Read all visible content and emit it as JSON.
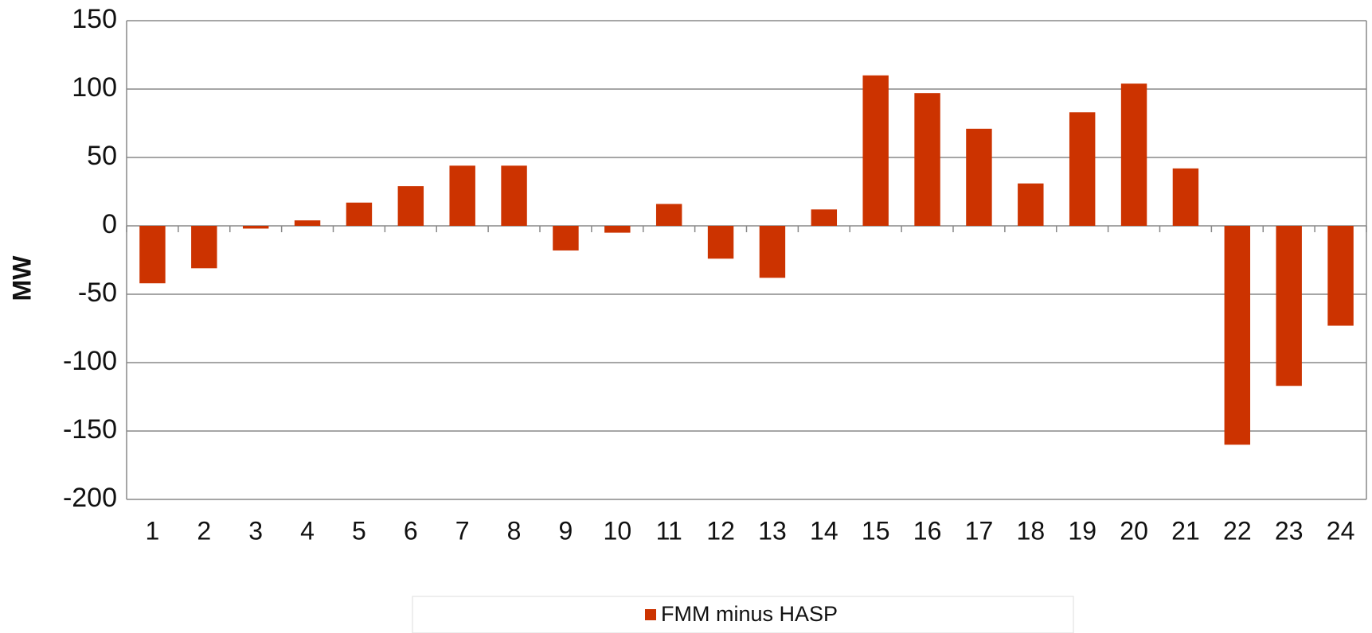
{
  "chart_data": {
    "type": "bar",
    "y_label": "MW",
    "categories": [
      "1",
      "2",
      "3",
      "4",
      "5",
      "6",
      "7",
      "8",
      "9",
      "10",
      "11",
      "12",
      "13",
      "14",
      "15",
      "16",
      "17",
      "18",
      "19",
      "20",
      "21",
      "22",
      "23",
      "24"
    ],
    "series": [
      {
        "name": "FMM minus HASP",
        "color": "#cc3300",
        "values": [
          -42,
          -31,
          -2,
          4,
          17,
          29,
          44,
          44,
          -18,
          -5,
          16,
          -24,
          -38,
          12,
          110,
          97,
          71,
          31,
          83,
          104,
          42,
          -160,
          -117,
          -73
        ]
      }
    ],
    "ylim": [
      -200,
      150
    ],
    "yticks": [
      -200,
      -150,
      -100,
      -50,
      0,
      50,
      100,
      150
    ],
    "grid": true,
    "legend": "bottom"
  }
}
